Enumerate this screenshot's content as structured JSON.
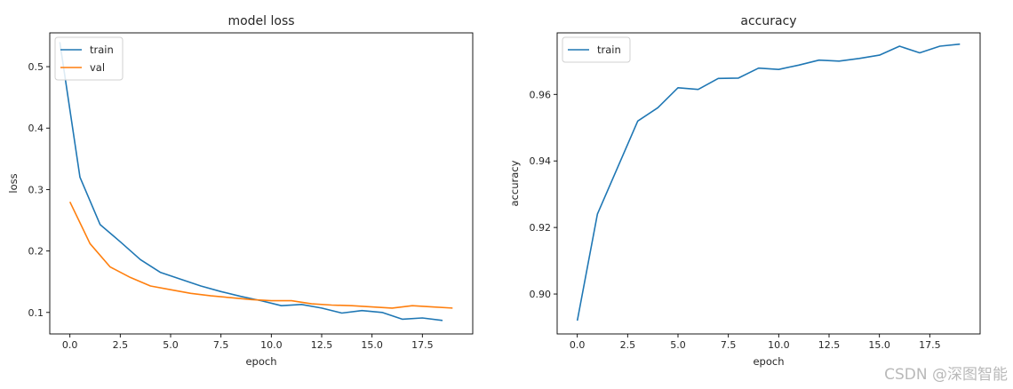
{
  "chart_data": [
    {
      "type": "line",
      "title": "model loss",
      "xlabel": "epoch",
      "ylabel": "loss",
      "xlim": [
        -1.0,
        20.0
      ],
      "ylim": [
        0.065,
        0.555
      ],
      "xticks": [
        0.0,
        2.5,
        5.0,
        7.5,
        10.0,
        12.5,
        15.0,
        17.5
      ],
      "xtick_labels": [
        "0.0",
        "2.5",
        "5.0",
        "7.5",
        "10.0",
        "12.5",
        "15.0",
        "17.5"
      ],
      "yticks": [
        0.1,
        0.2,
        0.3,
        0.4,
        0.5
      ],
      "ytick_labels": [
        "0.1",
        "0.2",
        "0.3",
        "0.4",
        "0.5"
      ],
      "grid": false,
      "legend": "top-left",
      "series": [
        {
          "name": "train",
          "color": "#1f77b4",
          "x": [
            -0.5,
            0.5,
            1.5,
            2.5,
            3.5,
            4.5,
            5.5,
            6.5,
            7.5,
            8.5,
            9.5,
            10.5,
            11.5,
            12.5,
            13.5,
            14.5,
            15.5,
            16.5,
            17.5,
            18.5
          ],
          "y": [
            0.54,
            0.32,
            0.243,
            0.215,
            0.186,
            0.165,
            0.154,
            0.143,
            0.134,
            0.126,
            0.119,
            0.111,
            0.113,
            0.107,
            0.099,
            0.103,
            0.1,
            0.089,
            0.091,
            0.087
          ]
        },
        {
          "name": "val",
          "color": "#ff7f0e",
          "x": [
            0,
            1,
            2,
            3,
            4,
            5,
            6,
            7,
            8,
            9,
            10,
            11,
            12,
            13,
            14,
            15,
            16,
            17,
            18,
            19
          ],
          "y": [
            0.28,
            0.212,
            0.174,
            0.157,
            0.143,
            0.137,
            0.131,
            0.127,
            0.124,
            0.121,
            0.119,
            0.119,
            0.114,
            0.112,
            0.111,
            0.109,
            0.107,
            0.111,
            0.109,
            0.107
          ]
        }
      ]
    },
    {
      "type": "line",
      "title": "accuracy",
      "xlabel": "epoch",
      "ylabel": "accuracy",
      "xlim": [
        -1.0,
        20.0
      ],
      "ylim": [
        0.888,
        0.9785
      ],
      "xticks": [
        0.0,
        2.5,
        5.0,
        7.5,
        10.0,
        12.5,
        15.0,
        17.5
      ],
      "xtick_labels": [
        "0.0",
        "2.5",
        "5.0",
        "7.5",
        "10.0",
        "12.5",
        "15.0",
        "17.5"
      ],
      "yticks": [
        0.9,
        0.92,
        0.94,
        0.96
      ],
      "ytick_labels": [
        "0.90",
        "0.92",
        "0.94",
        "0.96"
      ],
      "grid": false,
      "legend": "top-left",
      "series": [
        {
          "name": "train",
          "color": "#1f77b4",
          "x": [
            0,
            1,
            2,
            3,
            4,
            5,
            6,
            7,
            8,
            9,
            10,
            11,
            12,
            13,
            14,
            15,
            16,
            17,
            18,
            19
          ],
          "y": [
            0.892,
            0.924,
            0.938,
            0.952,
            0.956,
            0.962,
            0.9615,
            0.9648,
            0.9649,
            0.9679,
            0.9675,
            0.9688,
            0.9703,
            0.97,
            0.9708,
            0.9718,
            0.9745,
            0.9725,
            0.9745,
            0.9751
          ]
        }
      ]
    }
  ],
  "watermark": "CSDN @深图智能"
}
